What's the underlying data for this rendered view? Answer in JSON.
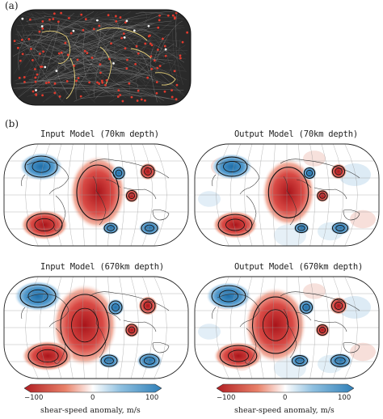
{
  "panel_a": {
    "label": "(a)"
  },
  "panel_b": {
    "label": "(b)"
  },
  "maps": [
    {
      "id": "in70",
      "title": "Input Model (70km depth)"
    },
    {
      "id": "out70",
      "title": "Output Model (70km depth)"
    },
    {
      "id": "in670",
      "title": "Input Model (670km depth)"
    },
    {
      "id": "out670",
      "title": "Output Model (670km depth)"
    }
  ],
  "colorbars": [
    {
      "min_label": "−100",
      "mid_label": "0",
      "max_label": "100",
      "label": "shear-speed anomaly, m/s"
    },
    {
      "min_label": "−100",
      "mid_label": "0",
      "max_label": "100",
      "label": "shear-speed anomaly, m/s"
    }
  ],
  "colors": {
    "slow": "#c8282a",
    "fast": "#3a86c0",
    "neutral": "#ffffff",
    "coverage_bg": "#1a1a1a",
    "ray": "#e8d27a",
    "station": "#e23b2e"
  }
}
